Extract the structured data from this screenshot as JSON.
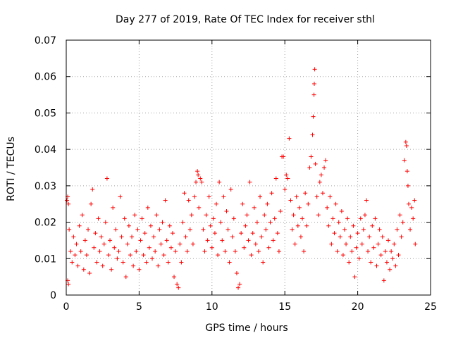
{
  "chart_data": {
    "type": "scatter",
    "title": "Day 277 of 2019, Rate Of TEC Index for receiver sthl",
    "xlabel": "GPS time / hours",
    "ylabel": "ROTI / TECUs",
    "xlim": [
      0,
      25
    ],
    "ylim": [
      0,
      0.07
    ],
    "xticks": [
      0,
      5,
      10,
      15,
      20,
      25
    ],
    "xtick_labels": [
      "0",
      "5",
      "10",
      "15",
      "20",
      "25"
    ],
    "yticks": [
      0,
      0.01,
      0.02,
      0.03,
      0.04,
      0.05,
      0.06,
      0.07
    ],
    "ytick_labels": [
      "0",
      "0.01",
      "0.02",
      "0.03",
      "0.04",
      "0.05",
      "0.06",
      "0.07"
    ],
    "grid": true,
    "marker": "+",
    "color": "#ff0000",
    "series": [
      {
        "name": "ROTI",
        "points": [
          [
            0.05,
            0.026
          ],
          [
            0.1,
            0.027
          ],
          [
            0.15,
            0.025
          ],
          [
            0.2,
            0.018
          ],
          [
            0.1,
            0.004
          ],
          [
            0.15,
            0.003
          ],
          [
            0.3,
            0.012
          ],
          [
            0.4,
            0.009
          ],
          [
            0.5,
            0.016
          ],
          [
            0.6,
            0.011
          ],
          [
            0.7,
            0.014
          ],
          [
            0.8,
            0.008
          ],
          [
            0.9,
            0.019
          ],
          [
            1.0,
            0.012
          ],
          [
            1.1,
            0.022
          ],
          [
            1.2,
            0.007
          ],
          [
            1.3,
            0.015
          ],
          [
            1.4,
            0.011
          ],
          [
            1.5,
            0.018
          ],
          [
            1.6,
            0.006
          ],
          [
            1.7,
            0.025
          ],
          [
            1.8,
            0.029
          ],
          [
            1.9,
            0.013
          ],
          [
            2.0,
            0.017
          ],
          [
            2.1,
            0.009
          ],
          [
            2.2,
            0.021
          ],
          [
            2.3,
            0.012
          ],
          [
            2.4,
            0.016
          ],
          [
            2.5,
            0.008
          ],
          [
            2.6,
            0.014
          ],
          [
            2.7,
            0.02
          ],
          [
            2.8,
            0.032
          ],
          [
            2.9,
            0.011
          ],
          [
            3.0,
            0.015
          ],
          [
            3.1,
            0.007
          ],
          [
            3.2,
            0.024
          ],
          [
            3.3,
            0.013
          ],
          [
            3.4,
            0.018
          ],
          [
            3.5,
            0.01
          ],
          [
            3.6,
            0.012
          ],
          [
            3.7,
            0.027
          ],
          [
            3.8,
            0.016
          ],
          [
            3.9,
            0.009
          ],
          [
            4.0,
            0.021
          ],
          [
            4.1,
            0.005
          ],
          [
            4.2,
            0.014
          ],
          [
            4.3,
            0.019
          ],
          [
            4.4,
            0.011
          ],
          [
            4.5,
            0.016
          ],
          [
            4.6,
            0.008
          ],
          [
            4.7,
            0.022
          ],
          [
            4.8,
            0.012
          ],
          [
            4.9,
            0.018
          ],
          [
            5.0,
            0.007
          ],
          [
            5.1,
            0.015
          ],
          [
            5.2,
            0.021
          ],
          [
            5.3,
            0.011
          ],
          [
            5.4,
            0.017
          ],
          [
            5.5,
            0.009
          ],
          [
            5.6,
            0.024
          ],
          [
            5.7,
            0.013
          ],
          [
            5.8,
            0.019
          ],
          [
            5.9,
            0.01
          ],
          [
            6.0,
            0.016
          ],
          [
            6.1,
            0.012
          ],
          [
            6.2,
            0.022
          ],
          [
            6.3,
            0.008
          ],
          [
            6.4,
            0.018
          ],
          [
            6.5,
            0.014
          ],
          [
            6.6,
            0.02
          ],
          [
            6.7,
            0.011
          ],
          [
            6.8,
            0.026
          ],
          [
            6.9,
            0.015
          ],
          [
            7.0,
            0.009
          ],
          [
            7.1,
            0.019
          ],
          [
            7.2,
            0.013
          ],
          [
            7.3,
            0.017
          ],
          [
            7.4,
            0.005
          ],
          [
            7.5,
            0.012
          ],
          [
            7.6,
            0.003
          ],
          [
            7.7,
            0.002
          ],
          [
            7.8,
            0.014
          ],
          [
            7.9,
            0.009
          ],
          [
            8.0,
            0.02
          ],
          [
            8.1,
            0.028
          ],
          [
            8.2,
            0.016
          ],
          [
            8.3,
            0.012
          ],
          [
            8.4,
            0.026
          ],
          [
            8.5,
            0.018
          ],
          [
            8.6,
            0.022
          ],
          [
            8.7,
            0.014
          ],
          [
            8.8,
            0.027
          ],
          [
            8.9,
            0.031
          ],
          [
            9.0,
            0.034
          ],
          [
            9.05,
            0.033
          ],
          [
            9.1,
            0.024
          ],
          [
            9.2,
            0.032
          ],
          [
            9.3,
            0.031
          ],
          [
            9.4,
            0.018
          ],
          [
            9.5,
            0.012
          ],
          [
            9.6,
            0.022
          ],
          [
            9.7,
            0.015
          ],
          [
            9.8,
            0.027
          ],
          [
            9.9,
            0.019
          ],
          [
            10.0,
            0.013
          ],
          [
            10.1,
            0.021
          ],
          [
            10.2,
            0.017
          ],
          [
            10.3,
            0.025
          ],
          [
            10.4,
            0.011
          ],
          [
            10.5,
            0.031
          ],
          [
            10.6,
            0.02
          ],
          [
            10.7,
            0.015
          ],
          [
            10.8,
            0.027
          ],
          [
            10.9,
            0.012
          ],
          [
            11.0,
            0.023
          ],
          [
            11.1,
            0.018
          ],
          [
            11.2,
            0.009
          ],
          [
            11.3,
            0.029
          ],
          [
            11.4,
            0.016
          ],
          [
            11.5,
            0.021
          ],
          [
            11.6,
            0.012
          ],
          [
            11.7,
            0.006
          ],
          [
            11.8,
            0.002
          ],
          [
            11.9,
            0.003
          ],
          [
            12.0,
            0.017
          ],
          [
            12.1,
            0.025
          ],
          [
            12.2,
            0.013
          ],
          [
            12.3,
            0.019
          ],
          [
            12.4,
            0.022
          ],
          [
            12.5,
            0.015
          ],
          [
            12.6,
            0.031
          ],
          [
            12.7,
            0.011
          ],
          [
            12.8,
            0.017
          ],
          [
            12.9,
            0.024
          ],
          [
            13.0,
            0.014
          ],
          [
            13.1,
            0.02
          ],
          [
            13.2,
            0.012
          ],
          [
            13.3,
            0.027
          ],
          [
            13.4,
            0.016
          ],
          [
            13.5,
            0.009
          ],
          [
            13.6,
            0.022
          ],
          [
            13.7,
            0.018
          ],
          [
            13.8,
            0.025
          ],
          [
            13.9,
            0.013
          ],
          [
            14.0,
            0.02
          ],
          [
            14.1,
            0.028
          ],
          [
            14.2,
            0.015
          ],
          [
            14.3,
            0.021
          ],
          [
            14.4,
            0.032
          ],
          [
            14.5,
            0.017
          ],
          [
            14.6,
            0.012
          ],
          [
            14.7,
            0.023
          ],
          [
            14.8,
            0.038
          ],
          [
            14.9,
            0.038
          ],
          [
            15.0,
            0.029
          ],
          [
            15.1,
            0.033
          ],
          [
            15.2,
            0.032
          ],
          [
            15.3,
            0.043
          ],
          [
            15.4,
            0.026
          ],
          [
            15.5,
            0.018
          ],
          [
            15.6,
            0.022
          ],
          [
            15.7,
            0.014
          ],
          [
            15.8,
            0.027
          ],
          [
            15.9,
            0.019
          ],
          [
            16.0,
            0.024
          ],
          [
            16.1,
            0.016
          ],
          [
            16.2,
            0.021
          ],
          [
            16.3,
            0.012
          ],
          [
            16.4,
            0.028
          ],
          [
            16.5,
            0.019
          ],
          [
            16.6,
            0.025
          ],
          [
            16.7,
            0.035
          ],
          [
            16.8,
            0.038
          ],
          [
            16.9,
            0.044
          ],
          [
            16.95,
            0.049
          ],
          [
            17.0,
            0.055
          ],
          [
            17.02,
            0.058
          ],
          [
            17.05,
            0.062
          ],
          [
            17.1,
            0.036
          ],
          [
            17.2,
            0.027
          ],
          [
            17.3,
            0.022
          ],
          [
            17.4,
            0.031
          ],
          [
            17.5,
            0.033
          ],
          [
            17.6,
            0.028
          ],
          [
            17.7,
            0.035
          ],
          [
            17.8,
            0.037
          ],
          [
            17.9,
            0.024
          ],
          [
            18.0,
            0.019
          ],
          [
            18.1,
            0.027
          ],
          [
            18.2,
            0.014
          ],
          [
            18.3,
            0.021
          ],
          [
            18.4,
            0.017
          ],
          [
            18.5,
            0.025
          ],
          [
            18.6,
            0.012
          ],
          [
            18.7,
            0.02
          ],
          [
            18.8,
            0.016
          ],
          [
            18.9,
            0.023
          ],
          [
            19.0,
            0.011
          ],
          [
            19.1,
            0.018
          ],
          [
            19.2,
            0.014
          ],
          [
            19.3,
            0.021
          ],
          [
            19.4,
            0.009
          ],
          [
            19.5,
            0.016
          ],
          [
            19.6,
            0.012
          ],
          [
            19.7,
            0.019
          ],
          [
            19.8,
            0.005
          ],
          [
            19.9,
            0.013
          ],
          [
            20.0,
            0.017
          ],
          [
            20.1,
            0.01
          ],
          [
            20.2,
            0.021
          ],
          [
            20.3,
            0.014
          ],
          [
            20.4,
            0.018
          ],
          [
            20.5,
            0.022
          ],
          [
            20.6,
            0.026
          ],
          [
            20.7,
            0.012
          ],
          [
            20.8,
            0.016
          ],
          [
            20.9,
            0.009
          ],
          [
            21.0,
            0.019
          ],
          [
            21.1,
            0.013
          ],
          [
            21.2,
            0.021
          ],
          [
            21.3,
            0.008
          ],
          [
            21.4,
            0.014
          ],
          [
            21.5,
            0.018
          ],
          [
            21.6,
            0.011
          ],
          [
            21.7,
            0.016
          ],
          [
            21.8,
            0.004
          ],
          [
            21.9,
            0.012
          ],
          [
            22.0,
            0.009
          ],
          [
            22.1,
            0.015
          ],
          [
            22.2,
            0.007
          ],
          [
            22.3,
            0.012
          ],
          [
            22.4,
            0.01
          ],
          [
            22.5,
            0.014
          ],
          [
            22.6,
            0.008
          ],
          [
            22.7,
            0.018
          ],
          [
            22.8,
            0.011
          ],
          [
            22.9,
            0.022
          ],
          [
            23.0,
            0.016
          ],
          [
            23.1,
            0.02
          ],
          [
            23.2,
            0.037
          ],
          [
            23.3,
            0.042
          ],
          [
            23.35,
            0.041
          ],
          [
            23.4,
            0.034
          ],
          [
            23.45,
            0.03
          ],
          [
            23.5,
            0.025
          ],
          [
            23.6,
            0.018
          ],
          [
            23.7,
            0.024
          ],
          [
            23.8,
            0.021
          ],
          [
            23.9,
            0.026
          ],
          [
            23.95,
            0.014
          ]
        ]
      }
    ]
  }
}
